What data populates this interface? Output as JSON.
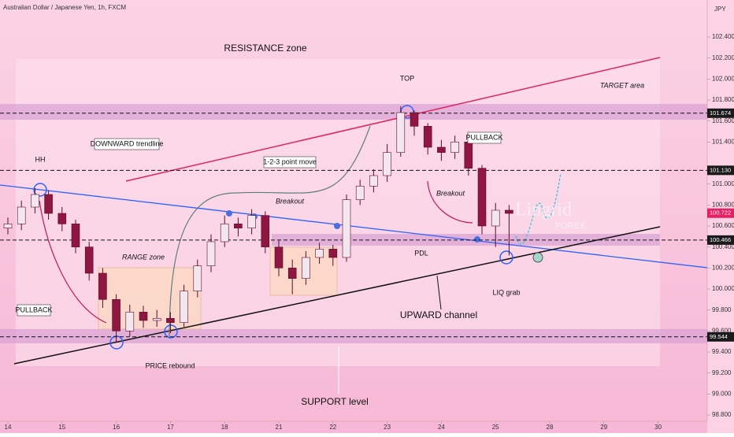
{
  "chart_data": {
    "type": "candlestick",
    "title": "Australian Dollar / Japanese Yen, 1h, FXCM",
    "currency": "JPY",
    "watermark": "Lingrid",
    "watermark_sub": "FOREX",
    "up_color": "#f4e6ee",
    "down_color": "#8e1640",
    "x": [
      0,
      0.25,
      0.5,
      0.75,
      1,
      1.25,
      1.5,
      1.75,
      2,
      2.25,
      2.5,
      2.75,
      3,
      3.25,
      3.5,
      3.75,
      4,
      4.25,
      4.5,
      4.75,
      5,
      5.25,
      5.5,
      5.75,
      6,
      6.25,
      6.5,
      6.75,
      7,
      7.25,
      7.5,
      7.75,
      8,
      8.25,
      8.5,
      8.75,
      9,
      9.25
    ],
    "open": [
      100.58,
      100.62,
      100.78,
      100.9,
      100.72,
      100.62,
      100.4,
      100.15,
      99.9,
      99.6,
      99.78,
      99.7,
      99.72,
      99.68,
      99.98,
      100.22,
      100.45,
      100.62,
      100.58,
      100.7,
      100.4,
      100.2,
      100.1,
      100.3,
      100.38,
      100.3,
      100.85,
      100.98,
      101.08,
      101.3,
      101.68,
      101.55,
      101.35,
      101.3,
      101.4,
      101.15,
      100.6,
      100.75
    ],
    "high": [
      100.68,
      100.84,
      100.96,
      100.94,
      100.78,
      100.66,
      100.45,
      100.2,
      99.95,
      99.85,
      99.84,
      99.8,
      99.78,
      100.04,
      100.28,
      100.52,
      100.7,
      100.68,
      100.76,
      100.74,
      100.46,
      100.28,
      100.36,
      100.44,
      100.42,
      100.9,
      101.04,
      101.14,
      101.38,
      101.74,
      101.7,
      101.58,
      101.42,
      101.46,
      101.44,
      101.18,
      100.82,
      100.8
    ],
    "low": [
      100.52,
      100.56,
      100.72,
      100.66,
      100.55,
      100.34,
      100.08,
      99.82,
      99.49,
      99.55,
      99.63,
      99.64,
      99.58,
      99.64,
      99.92,
      100.16,
      100.4,
      100.5,
      100.52,
      100.34,
      100.12,
      99.95,
      100.04,
      100.24,
      100.22,
      100.26,
      100.8,
      100.92,
      101.02,
      101.26,
      101.46,
      101.28,
      101.22,
      101.24,
      101.08,
      100.52,
      100.4,
      100.32
    ],
    "close": [
      100.62,
      100.78,
      100.9,
      100.72,
      100.62,
      100.4,
      100.15,
      99.9,
      99.6,
      99.78,
      99.7,
      99.72,
      99.68,
      99.98,
      100.22,
      100.45,
      100.62,
      100.58,
      100.7,
      100.4,
      100.2,
      100.1,
      100.3,
      100.38,
      100.3,
      100.85,
      100.98,
      101.08,
      101.3,
      101.68,
      101.55,
      101.35,
      101.3,
      101.4,
      101.15,
      100.6,
      100.75,
      100.72
    ],
    "xlim": [
      -0.15,
      12.2
    ],
    "xticks": [
      {
        "value": 0,
        "label": "14"
      },
      {
        "value": 1,
        "label": "15"
      },
      {
        "value": 2,
        "label": "16"
      },
      {
        "value": 3,
        "label": "17"
      },
      {
        "value": 4,
        "label": "18"
      },
      {
        "value": 5,
        "label": "21"
      },
      {
        "value": 6,
        "label": "22"
      },
      {
        "value": 7,
        "label": "23"
      },
      {
        "value": 8,
        "label": "24"
      },
      {
        "value": 9,
        "label": "25"
      },
      {
        "value": 10,
        "label": "28"
      },
      {
        "value": 11,
        "label": "29"
      },
      {
        "value": 12,
        "label": "30"
      }
    ],
    "ylim": [
      98.8,
      102.4
    ],
    "yticks": [
      {
        "value": 98.8,
        "label": "98.800"
      },
      {
        "value": 99.0,
        "label": "99.000"
      },
      {
        "value": 99.2,
        "label": "99.200"
      },
      {
        "value": 99.4,
        "label": "99.400"
      },
      {
        "value": 99.6,
        "label": "99.600"
      },
      {
        "value": 99.8,
        "label": "99.800"
      },
      {
        "value": 100.0,
        "label": "100.000"
      },
      {
        "value": 100.2,
        "label": "100.200"
      },
      {
        "value": 100.4,
        "label": "100.400"
      },
      {
        "value": 100.6,
        "label": "100.600"
      },
      {
        "value": 100.8,
        "label": "100.800"
      },
      {
        "value": 101.0,
        "label": "101.000"
      },
      {
        "value": 101.4,
        "label": "101.400"
      },
      {
        "value": 101.6,
        "label": "101.600"
      },
      {
        "value": 101.8,
        "label": "101.800"
      },
      {
        "value": 102.0,
        "label": "102.000"
      },
      {
        "value": 102.2,
        "label": "102.200"
      },
      {
        "value": 102.4,
        "label": "102.400"
      }
    ],
    "levels": [
      {
        "value": 101.674,
        "label": "101.674"
      },
      {
        "value": 101.13,
        "label": "101.130"
      },
      {
        "value": 100.466,
        "label": "100.466"
      },
      {
        "value": 99.544,
        "label": "99.544"
      }
    ],
    "last_price": {
      "value": 100.722,
      "label": "100.722"
    },
    "annotations": {
      "resistance": "RESISTANCE zone",
      "target": "TARGET area",
      "top": "TOP",
      "hh": "HH",
      "downward": "DOWNWARD trendline",
      "point_move": "1-2-3 point move",
      "breakout1": "Breakout",
      "breakout2": "Breakout",
      "pullback1": "PULLBACK",
      "pullback2": "PULLBACK",
      "range": "RANGE zone",
      "pdl": "PDL",
      "liq": "LIQ grab",
      "upward": "UPWARD channel",
      "rebound": "PRICE rebound",
      "support": "SUPPORT level"
    }
  }
}
